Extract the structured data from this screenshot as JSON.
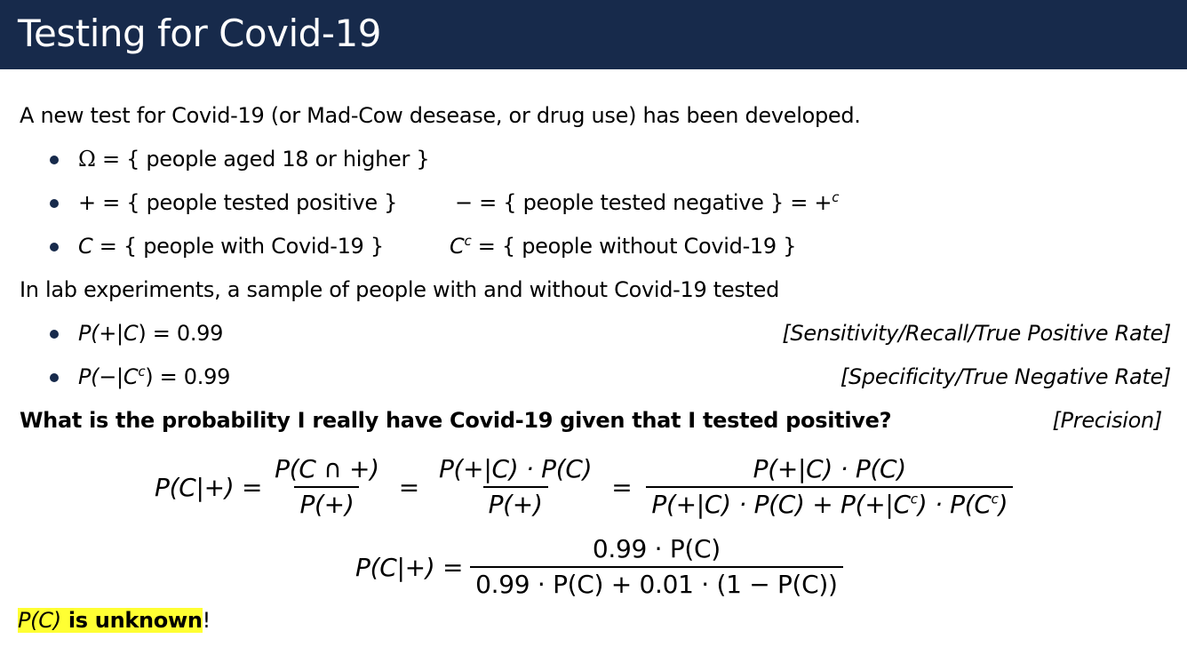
{
  "header": {
    "title": "Testing for Covid-19"
  },
  "intro": "A new test for Covid-19 (or Mad-Cow desease, or drug use) has been developed.",
  "definitions": {
    "omega": {
      "sym": "Ω",
      "eq": " = { people aged 18 or higher }"
    },
    "plus": {
      "sym": "+",
      "eq": " = { people tested positive }"
    },
    "minus": {
      "sym": "−",
      "eq": " = { people tested negative } = +",
      "sup": "c"
    },
    "c": {
      "sym": "C",
      "eq": " = { people with Covid-19 }"
    },
    "cc": {
      "sym": "C",
      "sup": "c",
      "eq": " = { people without Covid-19 }"
    }
  },
  "lab_intro": "In lab experiments, a sample of people with and without Covid-19 tested",
  "lab_results": {
    "sensitivity": {
      "expr_a": "P(+|",
      "expr_c": "C",
      "expr_b": ") = 0.99",
      "note": "[Sensitivity/Recall/True Positive Rate]"
    },
    "specificity": {
      "expr_a": "P(−|",
      "expr_c": "C",
      "expr_sup": "c",
      "expr_b": ") = 0.99",
      "note": "[Specificity/True Negative Rate]"
    }
  },
  "question": "What is the probability I really have Covid-19 given that I tested positive?",
  "question_note": "[Precision]",
  "eq1": {
    "lhs": "P(C|+) =",
    "f1_num": "P(C ∩ +)",
    "f1_den": "P(+)",
    "eq_sign": "=",
    "f2_num": "P(+|C) · P(C)",
    "f2_den": "P(+)",
    "eq_sign2": "=",
    "f3_num": "P(+|C) · P(C)",
    "f3_den_a": "P(+|C) · P(C) + P(+|C",
    "f3_den_sup1": "c",
    "f3_den_b": ") · P(C",
    "f3_den_sup2": "c",
    "f3_den_c": ")"
  },
  "eq2": {
    "lhs": "P(C|+) =",
    "num": "0.99 · P(C)",
    "den": "0.99 · P(C) + 0.01 · (1 − P(C))"
  },
  "footer": {
    "pc": "P(C)",
    "text": " is unknown",
    "excl": "!"
  },
  "colors": {
    "header_bg": "#172a4b",
    "highlight": "#ffff33"
  }
}
